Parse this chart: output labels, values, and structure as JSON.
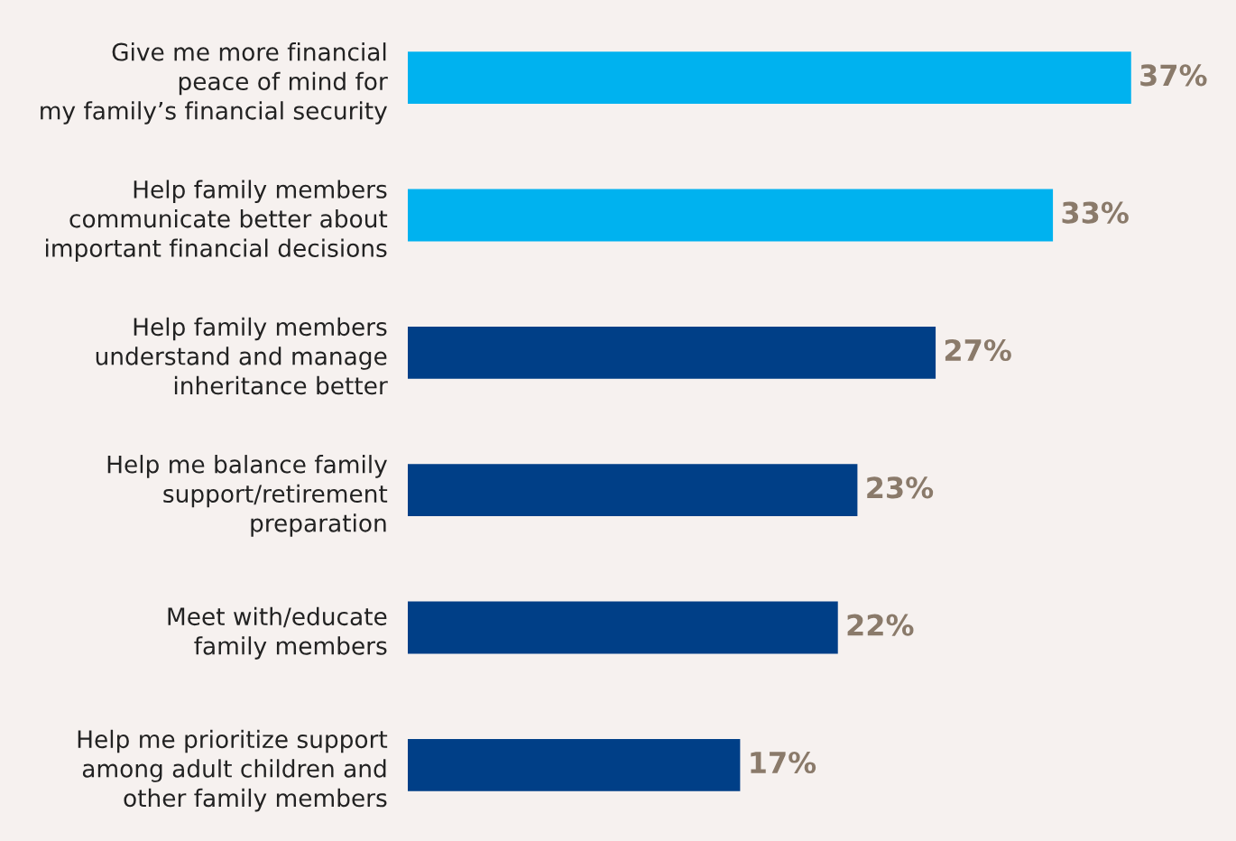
{
  "chart_data": {
    "type": "bar",
    "orientation": "horizontal",
    "categories": [
      "Give me more financial\npeace of mind for\nmy family’s financial security",
      "Help family members\ncommunicate better about\nimportant financial decisions",
      "Help family members\nunderstand and manage\ninheritance better",
      "Help me balance family\nsupport/retirement\npreparation",
      "Meet with/educate\nfamily members",
      "Help me prioritize support\namong adult children and\nother family members"
    ],
    "values": [
      37,
      33,
      27,
      23,
      22,
      17
    ],
    "colors": [
      "#00b2ef",
      "#00b2ef",
      "#003f87",
      "#003f87",
      "#003f87",
      "#003f87"
    ],
    "value_labels": [
      "37%",
      "33%",
      "27%",
      "23%",
      "22%",
      "17%"
    ],
    "grid": false,
    "legend": false
  }
}
